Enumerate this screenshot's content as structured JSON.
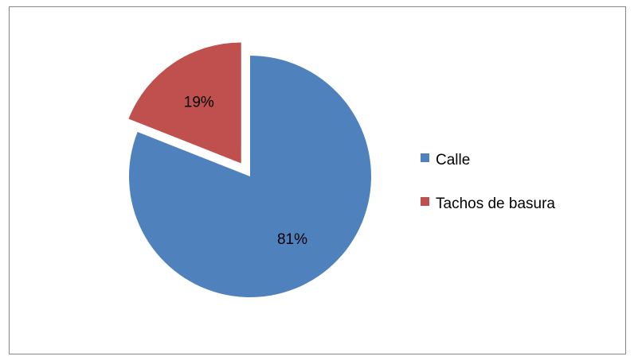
{
  "chart_data": {
    "type": "pie",
    "categories": [
      "Calle",
      "Tachos de basura"
    ],
    "values": [
      81,
      19
    ],
    "data_labels": [
      "81%",
      "19%"
    ],
    "colors": [
      "#4F81BD",
      "#C0504D"
    ],
    "exploded": [
      false,
      true
    ],
    "legend_position": "right"
  }
}
